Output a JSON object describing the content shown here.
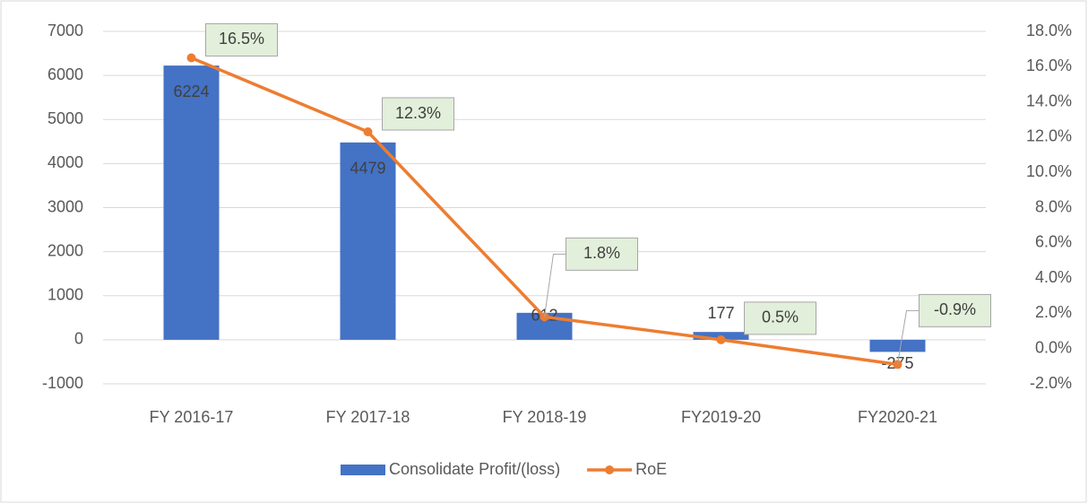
{
  "chart_data": {
    "type": "combo",
    "categories": [
      "FY 2016-17",
      "FY 2017-18",
      "FY 2018-19",
      "FY2019-20",
      "FY2020-21"
    ],
    "series": [
      {
        "name": "Consolidate Profit/(loss)",
        "type": "bar",
        "color": "#4472c4",
        "values": [
          6224,
          4479,
          612,
          177,
          -275
        ]
      },
      {
        "name": "RoE",
        "type": "line",
        "axis": "y2",
        "color": "#ed7d31",
        "values": [
          16.5,
          12.3,
          1.8,
          0.5,
          -0.9
        ],
        "value_labels": [
          "16.5%",
          "12.3%",
          "1.8%",
          "0.5%",
          "-0.9%"
        ]
      }
    ],
    "ylim": [
      -1000,
      7000
    ],
    "yticks": [
      -1000,
      0,
      1000,
      2000,
      3000,
      4000,
      5000,
      6000,
      7000
    ],
    "y2lim": [
      -2,
      18
    ],
    "y2ticks": [
      {
        "value": -2,
        "label": "-2.0%"
      },
      {
        "value": 0,
        "label": "0.0%"
      },
      {
        "value": 2,
        "label": "2.0%"
      },
      {
        "value": 4,
        "label": "4.0%"
      },
      {
        "value": 6,
        "label": "6.0%"
      },
      {
        "value": 8,
        "label": "8.0%"
      },
      {
        "value": 10,
        "label": "10.0%"
      },
      {
        "value": 12,
        "label": "12.0%"
      },
      {
        "value": 14,
        "label": "14.0%"
      },
      {
        "value": 16,
        "label": "16.0%"
      },
      {
        "value": 18,
        "label": "18.0%"
      }
    ],
    "grid": true
  }
}
